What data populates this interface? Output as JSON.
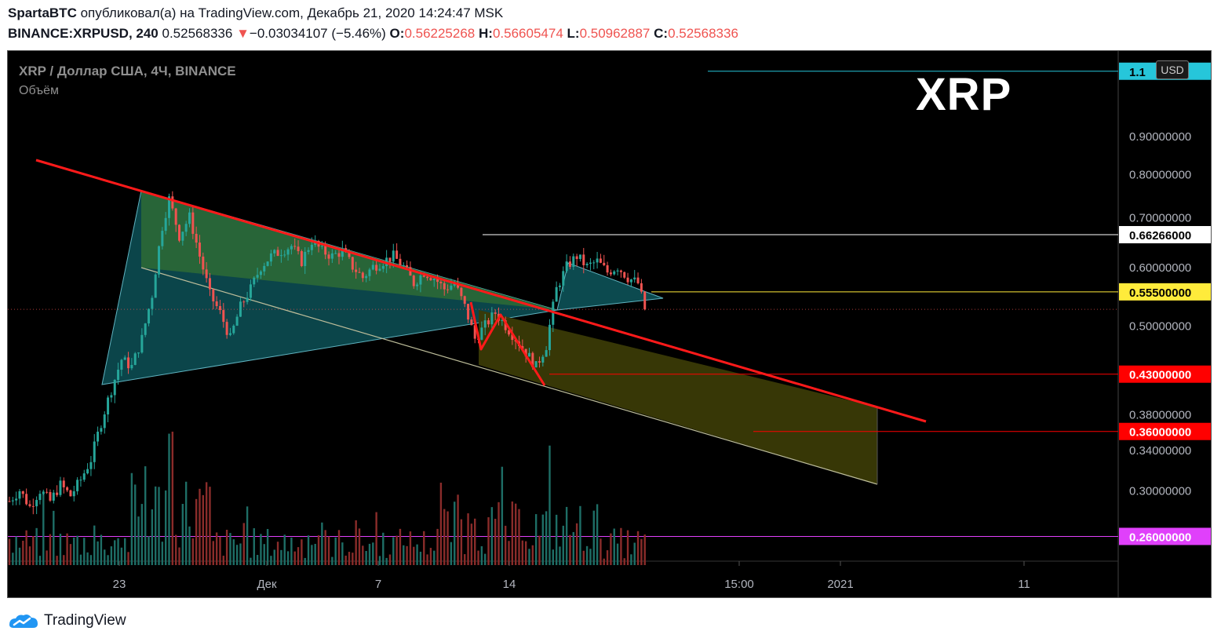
{
  "header": {
    "line1_user": "SpartaBTC",
    "line1_rest": " опубликовал(а) на TradingView.com, Декабрь 21, 2020 14:24:47 MSK",
    "symbol": "BINANCE:XRPUSD, 240",
    "last": "0.52568336",
    "arrow": "▼",
    "change": "−0.03034107 (−5.46%)",
    "o_label": "O:",
    "o_value": "0.56225268",
    "h_label": "H:",
    "h_value": "0.56605474",
    "l_label": "L:",
    "l_value": "0.50962887",
    "c_label": "C:",
    "c_value": "0.52568336"
  },
  "legend": {
    "title": "XRP / Доллар США, 4Ч, BINANCE",
    "volume_label": "Объём"
  },
  "big_label": "XRP",
  "currency_button": "USD",
  "footer": {
    "brand": "TradingView"
  },
  "colors": {
    "up_candle": "#26a69a",
    "down_candle": "#ef5350",
    "trend_line": "#ff1a1a",
    "triangle_fill": "#0f5c63",
    "channel_fill_upper": "#2e6b35",
    "channel_fill_lower": "#3a3a06",
    "cyan_level": "#26c6da",
    "yellow_level": "#ffeb3b",
    "magenta_level": "#e040fb",
    "white_level": "#ffffff",
    "red_level": "#ff0000"
  },
  "chart_data": {
    "type": "candlestick",
    "instrument": "BINANCE:XRPUSD",
    "timeframe": "240",
    "x_ticks": [
      "23",
      "Дек",
      "7",
      "14",
      "15:00",
      "2021",
      "11"
    ],
    "y_ticks": [
      "0.90000000",
      "0.80000000",
      "0.70000000",
      "0.60000000",
      "0.50000000",
      "0.38000000",
      "0.34000000",
      "0.30000000"
    ],
    "y_range": [
      0.235,
      1.2
    ],
    "y_scale": "log",
    "price_labels": [
      {
        "value": "1.1",
        "text": "1.1",
        "color": "#26c6da",
        "text_color": "#000000"
      },
      {
        "value": "0.66266000",
        "text": "0.66266000",
        "color": "#ffffff",
        "text_color": "#000000"
      },
      {
        "value": "0.55500000",
        "text": "0.55500000",
        "color": "#ffeb3b",
        "text_color": "#000000"
      },
      {
        "value": "0.43000000",
        "text": "0.43000000",
        "color": "#ff0000",
        "text_color": "#ffffff"
      },
      {
        "value": "0.36000000",
        "text": "0.36000000",
        "color": "#ff0000",
        "text_color": "#ffffff"
      },
      {
        "value": "0.26000000",
        "text": "0.26000000",
        "color": "#e040fb",
        "text_color": "#ffffff"
      }
    ],
    "horizontal_levels": [
      {
        "price": 1.1,
        "color": "#26c6da"
      },
      {
        "price": 0.66266,
        "color": "#ffffff"
      },
      {
        "price": 0.555,
        "color": "#ffeb3b"
      },
      {
        "price": 0.43,
        "color": "#ff0000"
      },
      {
        "price": 0.36,
        "color": "#ff0000"
      },
      {
        "price": 0.26,
        "color": "#e040fb"
      }
    ],
    "last_price": 0.52568336,
    "price_path": [
      [
        0,
        0.29
      ],
      [
        3,
        0.3
      ],
      [
        6,
        0.285
      ],
      [
        9,
        0.3
      ],
      [
        12,
        0.29
      ],
      [
        15,
        0.305
      ],
      [
        18,
        0.295
      ],
      [
        21,
        0.31
      ],
      [
        24,
        0.33
      ],
      [
        27,
        0.37
      ],
      [
        30,
        0.41
      ],
      [
        33,
        0.45
      ],
      [
        36,
        0.44
      ],
      [
        39,
        0.48
      ],
      [
        42,
        0.55
      ],
      [
        45,
        0.68
      ],
      [
        47,
        0.74
      ],
      [
        50,
        0.66
      ],
      [
        53,
        0.7
      ],
      [
        56,
        0.62
      ],
      [
        59,
        0.55
      ],
      [
        62,
        0.52
      ],
      [
        65,
        0.48
      ],
      [
        68,
        0.53
      ],
      [
        71,
        0.56
      ],
      [
        74,
        0.6
      ],
      [
        77,
        0.62
      ],
      [
        80,
        0.63
      ],
      [
        83,
        0.64
      ],
      [
        86,
        0.61
      ],
      [
        89,
        0.65
      ],
      [
        92,
        0.63
      ],
      [
        95,
        0.62
      ],
      [
        98,
        0.63
      ],
      [
        101,
        0.6
      ],
      [
        104,
        0.58
      ],
      [
        107,
        0.6
      ],
      [
        110,
        0.61
      ],
      [
        113,
        0.62
      ],
      [
        116,
        0.6
      ],
      [
        119,
        0.57
      ],
      [
        122,
        0.59
      ],
      [
        125,
        0.58
      ],
      [
        128,
        0.56
      ],
      [
        131,
        0.57
      ],
      [
        134,
        0.53
      ],
      [
        137,
        0.48
      ],
      [
        140,
        0.5
      ],
      [
        143,
        0.52
      ],
      [
        146,
        0.5
      ],
      [
        149,
        0.48
      ],
      [
        152,
        0.46
      ],
      [
        155,
        0.44
      ],
      [
        158,
        0.47
      ],
      [
        161,
        0.56
      ],
      [
        164,
        0.6
      ],
      [
        167,
        0.62
      ],
      [
        170,
        0.6
      ],
      [
        173,
        0.61
      ],
      [
        176,
        0.59
      ],
      [
        179,
        0.6
      ],
      [
        182,
        0.58
      ],
      [
        185,
        0.57
      ],
      [
        187,
        0.525
      ]
    ]
  }
}
